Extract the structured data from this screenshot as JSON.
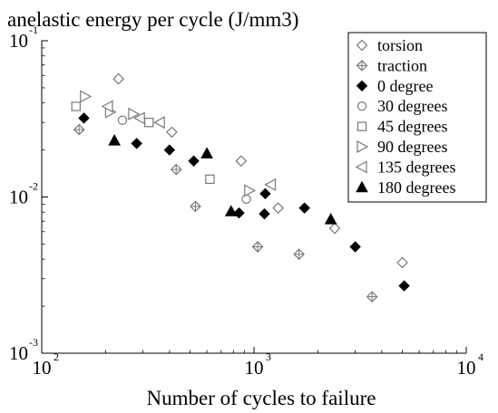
{
  "chart_data": {
    "type": "scatter",
    "title": "anelastic energy per cycle (J/mm3)",
    "xlabel": "Number of cycles to failure",
    "ylabel": "",
    "xscale": "log",
    "yscale": "log",
    "xlim": [
      100,
      10000
    ],
    "ylim": [
      0.001,
      0.1
    ],
    "grid": false,
    "legend_position": "top-right",
    "x_ticks": [
      {
        "value": 100,
        "base": "10",
        "exp": "2"
      },
      {
        "value": 1000,
        "base": "10",
        "exp": "3"
      },
      {
        "value": 10000,
        "base": "10",
        "exp": "4"
      }
    ],
    "y_ticks": [
      {
        "value": 0.001,
        "base": "10",
        "exp": "-3"
      },
      {
        "value": 0.01,
        "base": "10",
        "exp": "-2"
      },
      {
        "value": 0.1,
        "base": "10",
        "exp": "-1"
      }
    ],
    "series": [
      {
        "name": "torsion",
        "marker": "diamond-open",
        "points": [
          [
            230,
            0.057
          ],
          [
            410,
            0.026
          ],
          [
            870,
            0.017
          ],
          [
            1300,
            0.0085
          ],
          [
            2400,
            0.0063
          ],
          [
            5000,
            0.0038
          ]
        ]
      },
      {
        "name": "traction",
        "marker": "diamond-cross",
        "points": [
          [
            150,
            0.027
          ],
          [
            430,
            0.015
          ],
          [
            530,
            0.0087
          ],
          [
            1040,
            0.0048
          ],
          [
            1630,
            0.0043
          ],
          [
            3600,
            0.0023
          ]
        ]
      },
      {
        "name": "0",
        "marker": "diamond-filled",
        "points": [
          [
            158,
            0.032
          ],
          [
            280,
            0.022
          ],
          [
            400,
            0.02
          ],
          [
            520,
            0.017
          ],
          [
            850,
            0.0079
          ],
          [
            1120,
            0.0078
          ],
          [
            1130,
            0.0105
          ],
          [
            1730,
            0.0085
          ],
          [
            3000,
            0.0048
          ],
          [
            5100,
            0.0027
          ]
        ]
      },
      {
        "name": "30",
        "marker": "circle-open",
        "points": [
          [
            240,
            0.031
          ],
          [
            920,
            0.0097
          ]
        ]
      },
      {
        "name": "45",
        "marker": "square-open",
        "points": [
          [
            145,
            0.038
          ],
          [
            320,
            0.03
          ],
          [
            620,
            0.013
          ]
        ]
      },
      {
        "name": "90",
        "marker": "triangle-right-open",
        "points": [
          [
            160,
            0.044
          ],
          [
            210,
            0.035
          ],
          [
            270,
            0.034
          ],
          [
            950,
            0.011
          ]
        ]
      },
      {
        "name": "135",
        "marker": "triangle-left-open",
        "points": [
          [
            205,
            0.038
          ],
          [
            290,
            0.032
          ],
          [
            360,
            0.03
          ],
          [
            1200,
            0.012
          ]
        ]
      },
      {
        "name": "180",
        "marker": "triangle-up-filled",
        "points": [
          [
            220,
            0.023
          ],
          [
            600,
            0.019
          ],
          [
            780,
            0.0081
          ],
          [
            2300,
            0.0072
          ]
        ]
      }
    ],
    "legend": [
      {
        "label": "torsion",
        "marker": "diamond-open"
      },
      {
        "label": "traction",
        "marker": "diamond-cross"
      },
      {
        "label": "0  degree",
        "marker": "diamond-filled"
      },
      {
        "label": "30  degrees",
        "marker": "circle-open"
      },
      {
        "label": "45   degrees",
        "marker": "square-open"
      },
      {
        "label": "90   degrees",
        "marker": "triangle-right-open"
      },
      {
        "label": "135 degrees",
        "marker": "triangle-left-open"
      },
      {
        "label": "180 degrees",
        "marker": "triangle-up-filled"
      }
    ],
    "marker_color": "#000000",
    "open_marker_color": "#777777"
  }
}
